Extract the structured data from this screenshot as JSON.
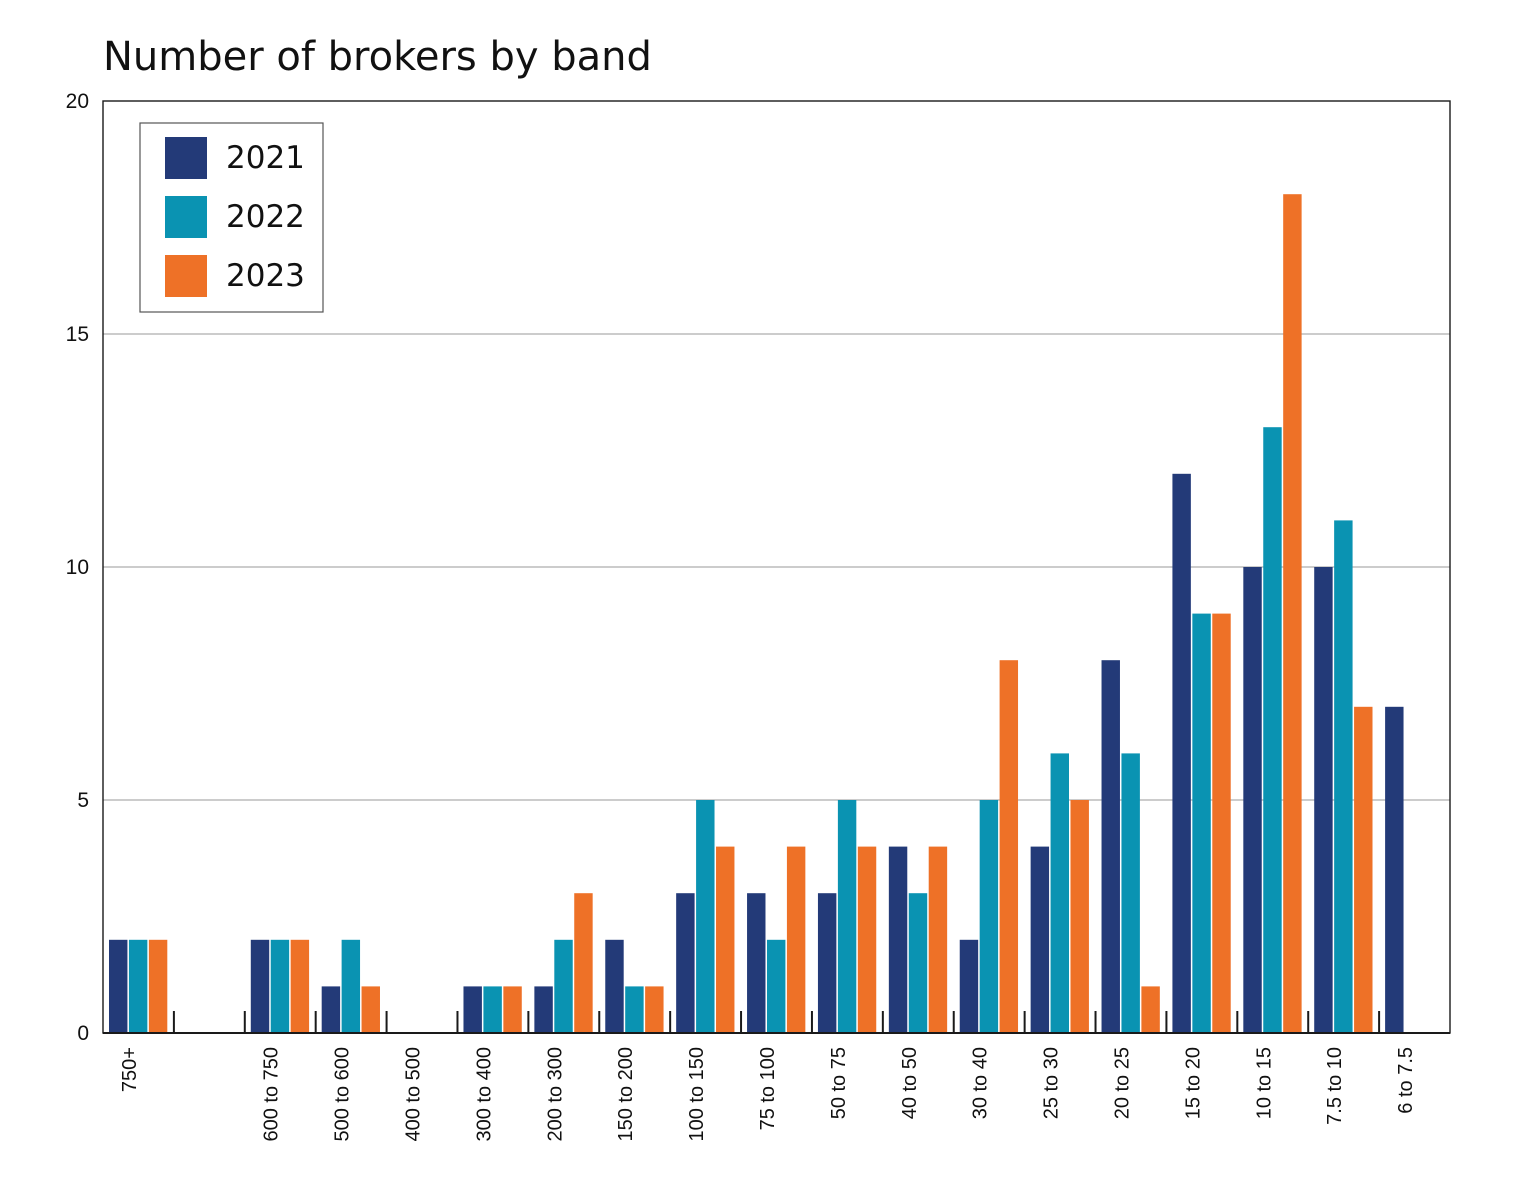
{
  "chart_data": {
    "type": "bar",
    "title": "Number of brokers by band",
    "xlabel": "",
    "ylabel": "",
    "ylim": [
      0,
      20
    ],
    "yticks": [
      "0",
      "5",
      "10",
      "15",
      "20"
    ],
    "grid": true,
    "legend_position": "top-left",
    "categories": [
      "750+",
      "600 to 750",
      "500 to 600",
      "400 to 500",
      "300 to 400",
      "200 to 300",
      "150 to 200",
      "100 to 150",
      "75 to 100",
      "50 to 75",
      "40 to 50",
      "30 to 40",
      "25 to 30",
      "20 to 25",
      "15 to 20",
      "10 to 15",
      "7.5 to 10",
      "6 to 7.5"
    ],
    "series": [
      {
        "name": "2021",
        "color": "#233a78",
        "values": [
          2,
          2,
          1,
          0,
          1,
          1,
          2,
          3,
          3,
          3,
          4,
          2,
          4,
          8,
          12,
          10,
          10,
          7
        ]
      },
      {
        "name": "2022",
        "color": "#0a93b2",
        "values": [
          2,
          2,
          2,
          0,
          1,
          2,
          1,
          5,
          2,
          5,
          3,
          5,
          6,
          6,
          9,
          13,
          11,
          0
        ]
      },
      {
        "name": "2023",
        "color": "#ee7127",
        "values": [
          2,
          2,
          1,
          0,
          1,
          3,
          1,
          4,
          4,
          4,
          4,
          8,
          5,
          1,
          9,
          18,
          7,
          0
        ]
      }
    ]
  }
}
